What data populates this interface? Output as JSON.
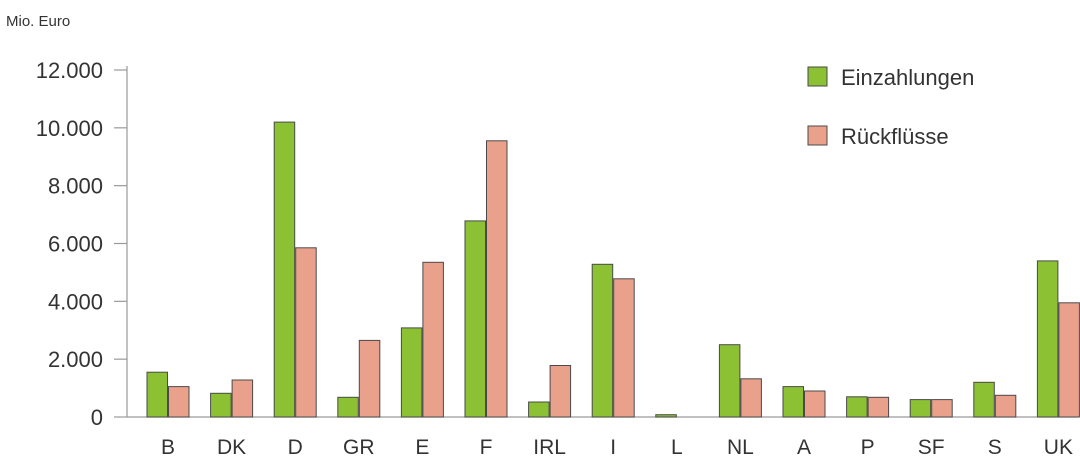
{
  "chart_data": {
    "type": "bar",
    "unit_label": "Mio. Euro",
    "categories": [
      "B",
      "DK",
      "D",
      "GR",
      "E",
      "F",
      "IRL",
      "I",
      "L",
      "NL",
      "A",
      "P",
      "SF",
      "S",
      "UK"
    ],
    "series": [
      {
        "name": "Einzahlungen",
        "color": "#8bc132",
        "values": [
          1550,
          820,
          10200,
          680,
          3080,
          6780,
          520,
          5280,
          80,
          2500,
          1050,
          700,
          600,
          1200,
          5400
        ]
      },
      {
        "name": "Rückflüsse",
        "color": "#e9a18c",
        "values": [
          1050,
          1280,
          5850,
          2650,
          5350,
          9550,
          1780,
          4780,
          0,
          1320,
          900,
          680,
          600,
          750,
          3950
        ]
      }
    ],
    "yticks": [
      "0",
      "2.000",
      "4.000",
      "6.000",
      "8.000",
      "10.000",
      "12.000"
    ],
    "ylim": [
      0,
      12000
    ],
    "legend_position": "top-right",
    "grid": false
  }
}
